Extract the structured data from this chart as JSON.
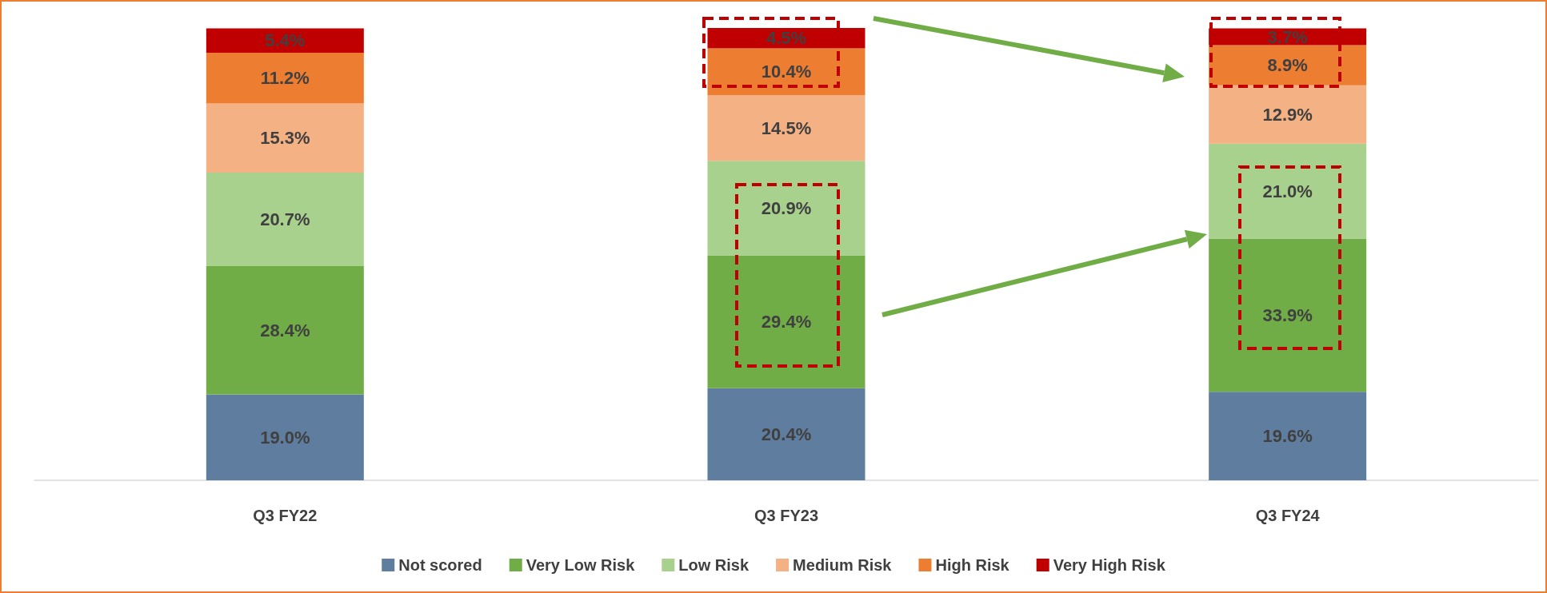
{
  "chart_data": {
    "type": "bar",
    "stacked": true,
    "legend": "bottom",
    "categories": [
      "Q3 FY22",
      "Q3 FY23",
      "Q3 FY24"
    ],
    "series": [
      {
        "name": "Not scored",
        "color": "#5f7d9e",
        "values": [
          19.0,
          20.4,
          19.6
        ],
        "value_labels": [
          "19.0%",
          "20.4%",
          "19.6%"
        ]
      },
      {
        "name": "Very Low Risk",
        "color": "#70ad47",
        "values": [
          28.4,
          29.4,
          33.9
        ],
        "value_labels": [
          "28.4%",
          "29.4%",
          "33.9%"
        ]
      },
      {
        "name": "Low Risk",
        "color": "#a9d18e",
        "values": [
          20.7,
          20.9,
          21.0
        ],
        "value_labels": [
          "20.7%",
          "20.9%",
          "21.0%"
        ]
      },
      {
        "name": "Medium Risk",
        "color": "#f4b183",
        "values": [
          15.3,
          14.5,
          12.9
        ],
        "value_labels": [
          "15.3%",
          "14.5%",
          "12.9%"
        ]
      },
      {
        "name": "High Risk",
        "color": "#ed7d31",
        "values": [
          11.2,
          10.4,
          8.9
        ],
        "value_labels": [
          "11.2%",
          "10.4%",
          "8.9%"
        ]
      },
      {
        "name": "Very High Risk",
        "color": "#c00000",
        "values": [
          5.4,
          4.5,
          3.7
        ],
        "value_labels": [
          "5.4%",
          "4.5%",
          "3.7%"
        ]
      }
    ]
  }
}
